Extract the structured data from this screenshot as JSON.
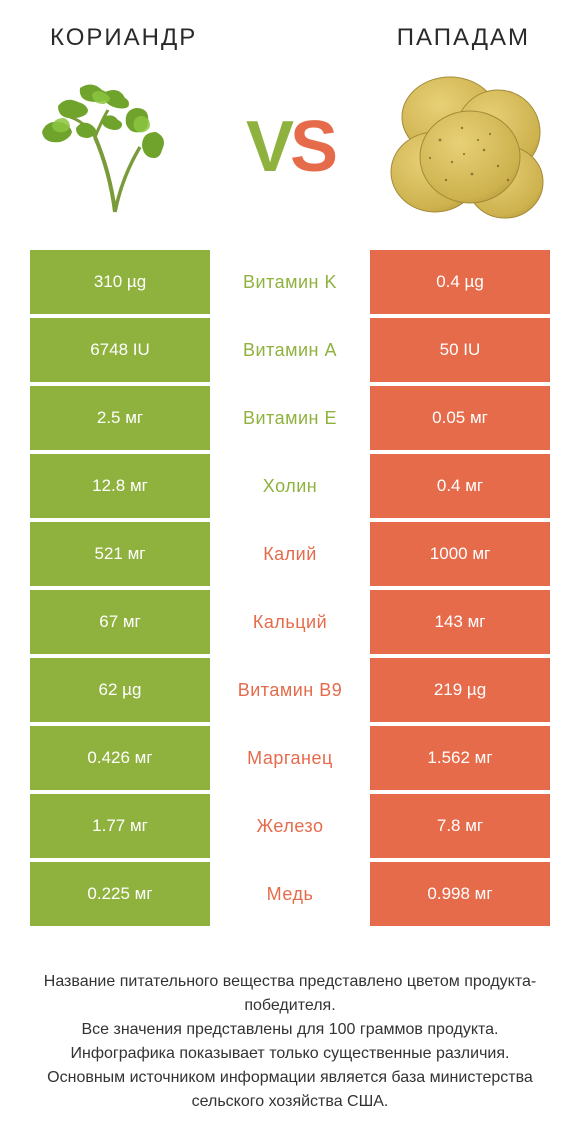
{
  "header": {
    "left_title": "КОРИАНДР",
    "right_title": "ПАПАДАМ"
  },
  "vs": {
    "v": "V",
    "s": "S"
  },
  "colors": {
    "green": "#8fb23e",
    "orange": "#e66b4b",
    "text": "#333333",
    "background": "#ffffff"
  },
  "rows": [
    {
      "left": "310 µg",
      "label": "Витамин K",
      "right": "0.4 µg",
      "winner": "left"
    },
    {
      "left": "6748 IU",
      "label": "Витамин A",
      "right": "50 IU",
      "winner": "left"
    },
    {
      "left": "2.5 мг",
      "label": "Витамин E",
      "right": "0.05 мг",
      "winner": "left"
    },
    {
      "left": "12.8 мг",
      "label": "Холин",
      "right": "0.4 мг",
      "winner": "left"
    },
    {
      "left": "521 мг",
      "label": "Калий",
      "right": "1000 мг",
      "winner": "right"
    },
    {
      "left": "67 мг",
      "label": "Кальций",
      "right": "143 мг",
      "winner": "right"
    },
    {
      "left": "62 µg",
      "label": "Витамин B9",
      "right": "219 µg",
      "winner": "right"
    },
    {
      "left": "0.426 мг",
      "label": "Марганец",
      "right": "1.562 мг",
      "winner": "right"
    },
    {
      "left": "1.77 мг",
      "label": "Железо",
      "right": "7.8 мг",
      "winner": "right"
    },
    {
      "left": "0.225 мг",
      "label": "Медь",
      "right": "0.998 мг",
      "winner": "right"
    }
  ],
  "footer": {
    "line1": "Название питательного вещества представлено цветом продукта-победителя.",
    "line2": "Все значения представлены для 100 граммов продукта.",
    "line3": "Инфографика показывает только существенные различия.",
    "line4": "Основным источником информации является база министерства сельского хозяйства США."
  }
}
